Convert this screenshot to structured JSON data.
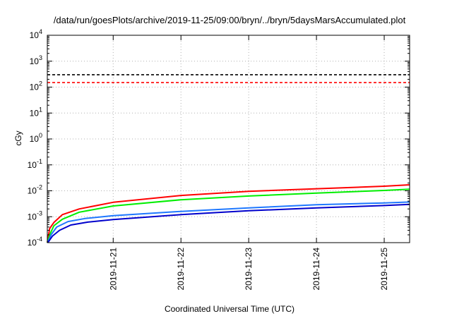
{
  "chart_data": {
    "type": "line",
    "title": "/data/run/goesPlots/archive/2019-11-25/09:00/bryn/../bryn/5daysMarsAccumulated.plot",
    "xlabel": "Coordinated Universal Time (UTC)",
    "ylabel": "cGy",
    "y_scale": "log",
    "ylim_exp": [
      -4,
      4
    ],
    "ylim": [
      0.0001,
      10000
    ],
    "y_ticks_exp": [
      -4,
      -3,
      -2,
      -1,
      0,
      1,
      2,
      3,
      4
    ],
    "xlim": [
      "2019-11-20 00:40",
      "2019-11-25 09:00"
    ],
    "x_ticks": [
      {
        "t": "2019-11-21 00:00",
        "label": "2019-11-21"
      },
      {
        "t": "2019-11-22 00:00",
        "label": "2019-11-22"
      },
      {
        "t": "2019-11-23 00:00",
        "label": "2019-11-23"
      },
      {
        "t": "2019-11-24 00:00",
        "label": "2019-11-24"
      },
      {
        "t": "2019-11-25 00:00",
        "label": "2019-11-25"
      }
    ],
    "grid": true,
    "legend": "none",
    "reference_lines": [
      {
        "y": 300,
        "color": "#000000",
        "style": "dashed"
      },
      {
        "y": 150,
        "color": "#ff0000",
        "style": "dashed"
      }
    ],
    "series": [
      {
        "color": "#ff0000",
        "x": [
          "2019-11-20 00:40",
          "2019-11-20 01:30",
          "2019-11-20 03:00",
          "2019-11-20 06:00",
          "2019-11-20 12:00",
          "2019-11-21 00:00",
          "2019-11-22 00:00",
          "2019-11-23 00:00",
          "2019-11-24 00:00",
          "2019-11-25 00:00",
          "2019-11-25 09:00"
        ],
        "values": [
          0.0001,
          0.00035,
          0.0006,
          0.0012,
          0.002,
          0.0036,
          0.0066,
          0.0095,
          0.012,
          0.015,
          0.017
        ]
      },
      {
        "color": "#00ee00",
        "x": [
          "2019-11-20 00:40",
          "2019-11-20 01:30",
          "2019-11-20 03:00",
          "2019-11-20 06:00",
          "2019-11-20 12:00",
          "2019-11-21 00:00",
          "2019-11-22 00:00",
          "2019-11-23 00:00",
          "2019-11-24 00:00",
          "2019-11-25 00:00",
          "2019-11-25 09:00"
        ],
        "values": [
          0.0001,
          0.0002,
          0.00045,
          0.0008,
          0.0015,
          0.0026,
          0.0045,
          0.0063,
          0.0082,
          0.0103,
          0.0115
        ]
      },
      {
        "color": "#1f78ff",
        "x": [
          "2019-11-20 00:45",
          "2019-11-20 02:00",
          "2019-11-20 04:00",
          "2019-11-20 08:00",
          "2019-11-20 14:00",
          "2019-11-21 00:00",
          "2019-11-22 00:00",
          "2019-11-23 00:00",
          "2019-11-24 00:00",
          "2019-11-25 00:00",
          "2019-11-25 09:00"
        ],
        "values": [
          0.0001,
          0.0002,
          0.0004,
          0.00065,
          0.00085,
          0.0011,
          0.0016,
          0.0022,
          0.0029,
          0.0034,
          0.0037
        ]
      },
      {
        "color": "#0000cc",
        "x": [
          "2019-11-20 00:50",
          "2019-11-20 02:30",
          "2019-11-20 05:00",
          "2019-11-20 09:00",
          "2019-11-20 15:00",
          "2019-11-21 00:00",
          "2019-11-22 00:00",
          "2019-11-23 00:00",
          "2019-11-24 00:00",
          "2019-11-25 00:00",
          "2019-11-25 09:00"
        ],
        "values": [
          0.0001,
          0.00018,
          0.0003,
          0.00048,
          0.00062,
          0.00078,
          0.0012,
          0.0017,
          0.0022,
          0.0027,
          0.003
        ]
      }
    ]
  }
}
